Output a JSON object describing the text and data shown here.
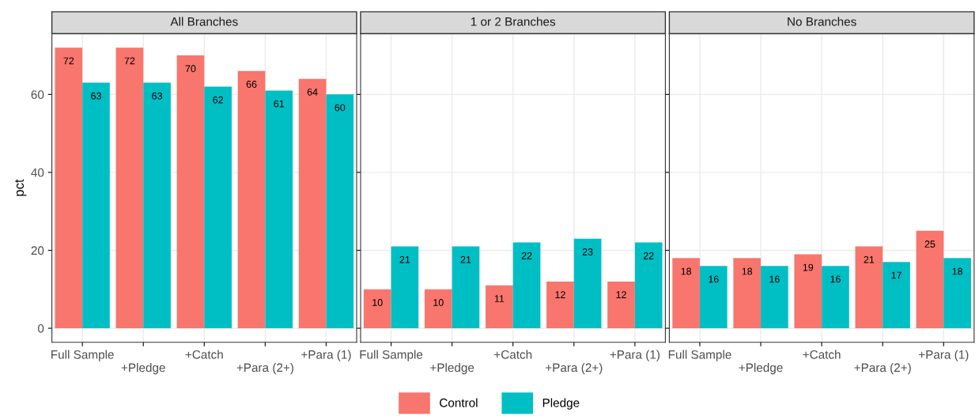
{
  "chart_data": [
    {
      "type": "bar",
      "title": "All Branches",
      "ylabel": "pct",
      "categories": [
        "Full Sample",
        "+Pledge",
        "+Catch",
        "+Para (2+)",
        "+Para (1)"
      ],
      "ylim": [
        -3.6,
        75.6
      ],
      "yticks": [
        0,
        20,
        40,
        60
      ],
      "grid": true,
      "legend": "bottom",
      "data_labels": true,
      "series": [
        {
          "name": "Control",
          "color": "#f8766d",
          "values": [
            72,
            72,
            70,
            66,
            64
          ]
        },
        {
          "name": "Pledge",
          "color": "#00bfc4",
          "values": [
            63,
            63,
            62,
            61,
            60
          ]
        }
      ]
    },
    {
      "type": "bar",
      "title": "1 or 2 Branches",
      "categories": [
        "Full Sample",
        "+Pledge",
        "+Catch",
        "+Para (2+)",
        "+Para (1)"
      ],
      "ylim": [
        -3.6,
        75.6
      ],
      "yticks": [
        0,
        20,
        40,
        60
      ],
      "grid": true,
      "tick_labels": "x",
      "data_labels": true,
      "series": [
        {
          "name": "Control",
          "color": "#f8766d",
          "values": [
            10,
            10,
            11,
            12,
            12
          ]
        },
        {
          "name": "Pledge",
          "color": "#00bfc4",
          "values": [
            21,
            21,
            22,
            23,
            22
          ]
        }
      ]
    },
    {
      "type": "bar",
      "title": "No Branches",
      "categories": [
        "Full Sample",
        "+Pledge",
        "+Catch",
        "+Para (2+)",
        "+Para (1)"
      ],
      "ylim": [
        -3.6,
        75.6
      ],
      "yticks": [
        0,
        20,
        40,
        60
      ],
      "grid": true,
      "tick_labels": "x",
      "data_labels": true,
      "series": [
        {
          "name": "Control",
          "color": "#f8766d",
          "values": [
            18,
            18,
            19,
            21,
            25
          ]
        },
        {
          "name": "Pledge",
          "color": "#00bfc4",
          "values": [
            16,
            16,
            16,
            17,
            18
          ]
        }
      ]
    }
  ]
}
